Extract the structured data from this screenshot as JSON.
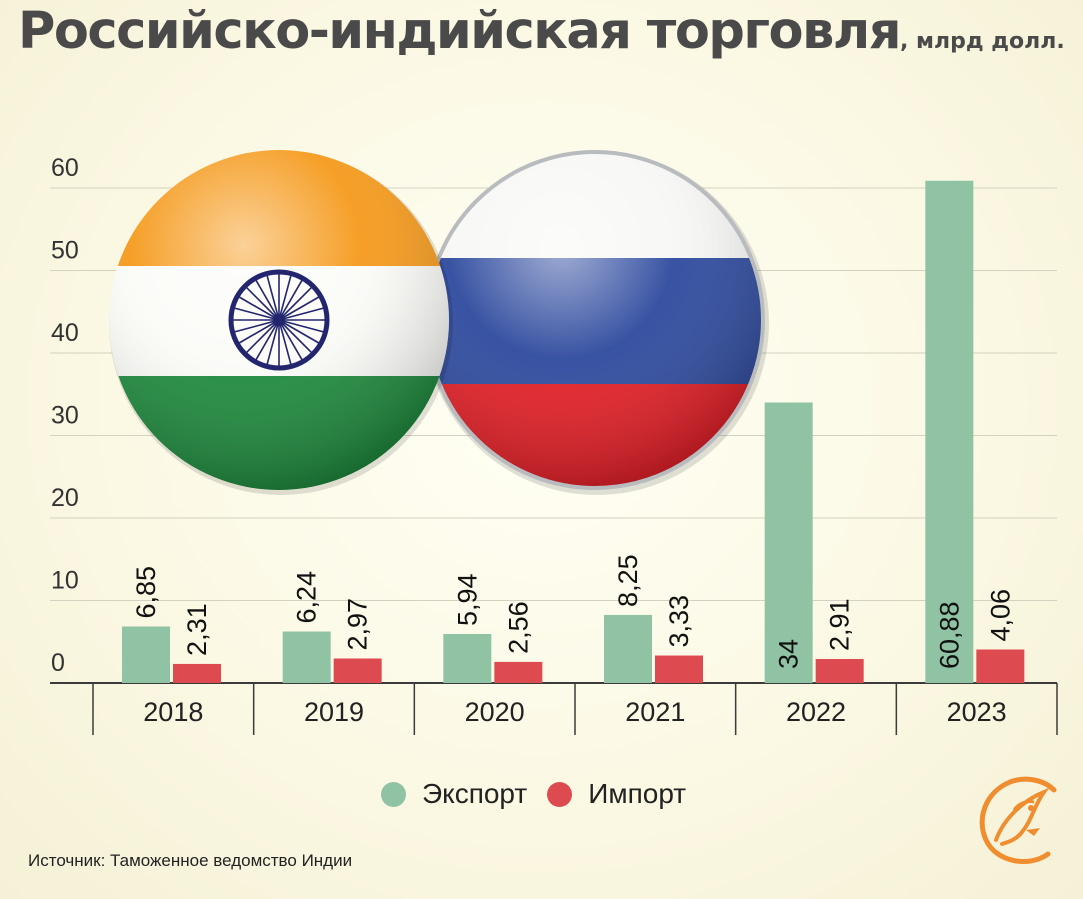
{
  "title": "Российско-индийская торговля",
  "title_unit": ", млрд долл.",
  "source": "Источник: Таможенное ведомство Индии",
  "legend": {
    "export_label": "Экспорт",
    "import_label": "Импорт"
  },
  "colors": {
    "export": "#8fc3a4",
    "import": "#dd4b50",
    "title": "#4a4a4a",
    "logo": "#ef8d2f"
  },
  "decorations": [
    "india-flag-badge",
    "russia-flag-badge",
    "bird-logo"
  ],
  "chart_data": {
    "type": "bar",
    "categories": [
      "2018",
      "2019",
      "2020",
      "2021",
      "2022",
      "2023"
    ],
    "series": [
      {
        "name": "Экспорт",
        "values": [
          6.85,
          6.24,
          5.94,
          8.25,
          34,
          60.88
        ],
        "labels": [
          "6,85",
          "6,24",
          "5,94",
          "8,25",
          "34",
          "60,88"
        ]
      },
      {
        "name": "Импорт",
        "values": [
          2.31,
          2.97,
          2.56,
          3.33,
          2.91,
          4.06
        ],
        "labels": [
          "2,31",
          "2,97",
          "2,56",
          "3,33",
          "2,91",
          "4,06"
        ]
      }
    ],
    "yticks": [
      0,
      10,
      20,
      30,
      40,
      50,
      60
    ],
    "ylim": [
      0,
      60
    ],
    "grid": true,
    "legend_position": "bottom-center"
  }
}
